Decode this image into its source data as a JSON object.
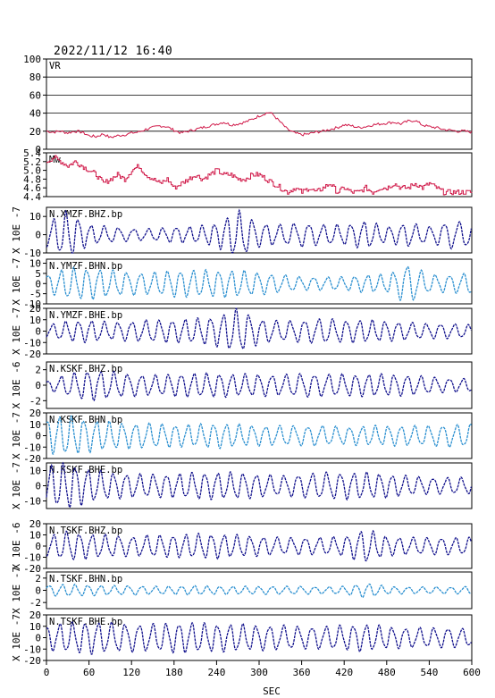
{
  "header": {
    "datetime": "2022/11/12  16:40"
  },
  "chart_data": {
    "type": "line",
    "xlabel": "SEC",
    "xlim": [
      0,
      600
    ],
    "xticks": [
      "0",
      "60",
      "120",
      "180",
      "240",
      "300",
      "360",
      "420",
      "480",
      "540",
      "600"
    ],
    "panels": [
      {
        "id": "vr",
        "label": "VR",
        "ylim": [
          0,
          100
        ],
        "yticks": [
          "100",
          "80",
          "60",
          "40",
          "20",
          "0"
        ],
        "grid": true,
        "color": "#d01848",
        "series": {
          "x": [
            0,
            10,
            20,
            30,
            40,
            50,
            60,
            70,
            80,
            90,
            100,
            110,
            120,
            130,
            140,
            150,
            160,
            170,
            180,
            190,
            200,
            210,
            220,
            230,
            240,
            250,
            260,
            270,
            280,
            290,
            300,
            310,
            315,
            320,
            330,
            340,
            350,
            360,
            370,
            380,
            390,
            400,
            410,
            420,
            430,
            440,
            450,
            460,
            470,
            480,
            490,
            500,
            510,
            520,
            530,
            540,
            550,
            560,
            570,
            580,
            590,
            600
          ],
          "y": [
            20,
            19,
            20,
            18,
            20,
            19,
            15,
            14,
            17,
            13,
            15,
            16,
            18,
            19,
            22,
            24,
            26,
            25,
            21,
            18,
            20,
            22,
            24,
            26,
            28,
            30,
            27,
            28,
            30,
            33,
            37,
            40,
            41,
            38,
            30,
            22,
            18,
            16,
            17,
            19,
            20,
            22,
            24,
            27,
            26,
            24,
            25,
            27,
            28,
            29,
            30,
            28,
            31,
            32,
            27,
            25,
            24,
            22,
            21,
            20,
            20,
            19
          ]
        }
      },
      {
        "id": "mw",
        "label": "Mw",
        "ylim": [
          4.4,
          5.4
        ],
        "yticks": [
          "5.4",
          "5.2",
          "5.0",
          "4.8",
          "4.6",
          "4.4"
        ],
        "grid": false,
        "color": "#d01848",
        "series": {
          "x": [
            0,
            10,
            20,
            30,
            40,
            50,
            60,
            70,
            80,
            90,
            100,
            110,
            120,
            130,
            140,
            150,
            160,
            170,
            180,
            190,
            200,
            210,
            220,
            230,
            240,
            250,
            260,
            270,
            280,
            290,
            300,
            310,
            320,
            330,
            340,
            350,
            360,
            370,
            380,
            390,
            400,
            410,
            420,
            430,
            440,
            450,
            460,
            470,
            480,
            490,
            500,
            510,
            520,
            530,
            540,
            550,
            560,
            570,
            580,
            590,
            600
          ],
          "y": [
            5.2,
            5.3,
            5.2,
            5.1,
            5.2,
            5.1,
            5.0,
            4.9,
            4.7,
            4.8,
            4.9,
            4.8,
            5.0,
            5.1,
            4.9,
            4.8,
            4.7,
            4.8,
            4.6,
            4.7,
            4.8,
            4.9,
            4.8,
            4.9,
            5.0,
            4.9,
            4.9,
            4.8,
            4.8,
            4.9,
            4.9,
            4.8,
            4.7,
            4.6,
            4.5,
            4.6,
            4.5,
            4.6,
            4.5,
            4.6,
            4.7,
            4.5,
            4.6,
            4.5,
            4.5,
            4.6,
            4.5,
            4.6,
            4.6,
            4.7,
            4.6,
            4.6,
            4.7,
            4.6,
            4.7,
            4.6,
            4.5,
            4.5,
            4.5,
            4.5,
            4.5
          ]
        }
      },
      {
        "id": "xmzf_bhz",
        "label": "N.XMZF.BHZ.bp",
        "ylabel": "X 10E -7",
        "ylim": [
          -10,
          15
        ],
        "yticks": [
          "10",
          "0",
          "-10"
        ],
        "color": "#10108c",
        "amp": [
          6,
          12,
          5,
          4,
          3,
          3,
          4,
          4,
          6,
          12,
          6,
          5,
          6,
          5,
          5,
          7,
          4,
          6,
          4,
          7,
          6
        ],
        "period": [
          19,
          17,
          18,
          20,
          22,
          20,
          19,
          18,
          17,
          18,
          19,
          20,
          21,
          20,
          19,
          18,
          18,
          19,
          20,
          21,
          20
        ]
      },
      {
        "id": "ymzf_bhn",
        "label": "N.YMZF.BHN.bp",
        "ylabel": "X 10E -7",
        "ylim": [
          -10,
          12
        ],
        "yticks": [
          "10",
          "5",
          "0",
          "-5",
          "-10"
        ],
        "color": "#2a8fd0",
        "amp": [
          4,
          7,
          7,
          6,
          5,
          5,
          6,
          6,
          6,
          6,
          5,
          4,
          3,
          3,
          3,
          4,
          4,
          9,
          4,
          4,
          5
        ],
        "period": [
          19,
          18,
          18,
          19,
          20,
          19,
          18,
          18,
          18,
          18,
          19,
          20,
          20,
          20,
          19,
          18,
          18,
          20,
          20,
          20,
          19
        ]
      },
      {
        "id": "ymzf_bhe",
        "label": "N.YMZF.BHE.bp",
        "ylabel": "X 10E -7",
        "ylim": [
          -20,
          20
        ],
        "yticks": [
          "20",
          "10",
          "0",
          "-10",
          "-20"
        ],
        "color": "#10108c",
        "amp": [
          5,
          8,
          9,
          7,
          8,
          9,
          9,
          10,
          12,
          18,
          10,
          8,
          9,
          10,
          9,
          9,
          8,
          7,
          6,
          6,
          5
        ],
        "period": [
          19,
          18,
          18,
          19,
          20,
          19,
          18,
          18,
          18,
          18,
          19,
          20,
          20,
          20,
          19,
          18,
          18,
          20,
          20,
          20,
          19
        ]
      },
      {
        "id": "kskf_bhz",
        "label": "N.KSKF.BHZ.bp",
        "ylabel": "X 10E -6",
        "ylim": [
          -3,
          3
        ],
        "yticks": [
          "2",
          "0",
          "-2"
        ],
        "color": "#10108c",
        "amp": [
          0.5,
          1.3,
          1.8,
          1.6,
          1.3,
          1.2,
          1.3,
          1.4,
          1.4,
          1.3,
          1.3,
          1.2,
          1.4,
          1.3,
          1.3,
          1.3,
          1.3,
          1.2,
          1.0,
          0.8,
          0.8
        ],
        "period": [
          20,
          19,
          18,
          19,
          20,
          19,
          18,
          18,
          18,
          18,
          19,
          20,
          20,
          20,
          19,
          18,
          18,
          19,
          20,
          20,
          19
        ]
      },
      {
        "id": "kskf_bhn",
        "label": "N.KSKF.BHN.bp",
        "ylabel": "X 10E -7",
        "ylim": [
          -20,
          20
        ],
        "yticks": [
          "20",
          "10",
          "0",
          "-10",
          "-20"
        ],
        "color": "#2a8fd0",
        "amp": [
          14,
          16,
          13,
          11,
          10,
          10,
          9,
          9,
          10,
          9,
          8,
          8,
          8,
          8,
          7,
          8,
          8,
          8,
          8,
          9,
          9
        ],
        "period": [
          17,
          17,
          18,
          18,
          19,
          19,
          18,
          18,
          18,
          18,
          19,
          20,
          20,
          20,
          19,
          18,
          18,
          19,
          20,
          20,
          19
        ]
      },
      {
        "id": "kskf_bhe",
        "label": "N.KSKF.BHE.bp",
        "ylabel": "X 10E -7",
        "ylim": [
          -15,
          15
        ],
        "yticks": [
          "10",
          "0",
          "-10"
        ],
        "color": "#10108c",
        "amp": [
          12,
          14,
          10,
          8,
          7,
          7,
          7,
          8,
          8,
          8,
          7,
          6,
          7,
          8,
          8,
          8,
          7,
          6,
          5,
          5,
          5
        ],
        "period": [
          17,
          17,
          18,
          18,
          19,
          19,
          18,
          18,
          18,
          18,
          19,
          20,
          20,
          20,
          19,
          18,
          18,
          19,
          20,
          20,
          19
        ]
      },
      {
        "id": "tskf_bhz",
        "label": "N.TSKF.BHZ.bp",
        "ylabel": "X 10E -6",
        "ylim": [
          -20,
          20
        ],
        "yticks": [
          "20",
          "10",
          "0",
          "-10",
          "-20"
        ],
        "color": "#10108c",
        "amp": [
          8,
          12,
          10,
          9,
          8,
          9,
          9,
          10,
          10,
          9,
          8,
          7,
          7,
          7,
          8,
          14,
          8,
          7,
          7,
          7,
          7
        ],
        "period": [
          19,
          18,
          18,
          19,
          20,
          19,
          18,
          18,
          18,
          18,
          19,
          20,
          20,
          20,
          19,
          18,
          18,
          20,
          20,
          20,
          19
        ]
      },
      {
        "id": "tskf_bhn",
        "label": "N.TSKF.BHN.bp",
        "ylabel": "X 10E -7",
        "ylim": [
          -3,
          3
        ],
        "yticks": [
          "2",
          "0",
          "-2"
        ],
        "color": "#2a8fd0",
        "amp": [
          0.8,
          0.9,
          0.8,
          0.7,
          0.7,
          0.6,
          0.6,
          0.7,
          0.6,
          0.6,
          0.6,
          0.6,
          0.6,
          0.5,
          0.6,
          1.1,
          0.6,
          0.5,
          0.5,
          0.5,
          0.6
        ],
        "period": [
          19,
          18,
          18,
          19,
          20,
          19,
          18,
          18,
          18,
          18,
          19,
          20,
          20,
          20,
          19,
          18,
          18,
          20,
          20,
          20,
          19
        ]
      },
      {
        "id": "tskf_bhe",
        "label": "N.TSKF.BHE.bp",
        "ylabel": "X 10E -7",
        "ylim": [
          -20,
          20
        ],
        "yticks": [
          "20",
          "10",
          "0",
          "-10",
          "-20"
        ],
        "color": "#10108c",
        "amp": [
          10,
          12,
          13,
          12,
          11,
          11,
          12,
          12,
          11,
          11,
          10,
          10,
          9,
          9,
          10,
          11,
          9,
          8,
          8,
          8,
          7
        ],
        "period": [
          19,
          18,
          18,
          19,
          20,
          19,
          18,
          18,
          18,
          18,
          19,
          20,
          20,
          20,
          19,
          18,
          18,
          20,
          20,
          20,
          19
        ]
      }
    ]
  }
}
